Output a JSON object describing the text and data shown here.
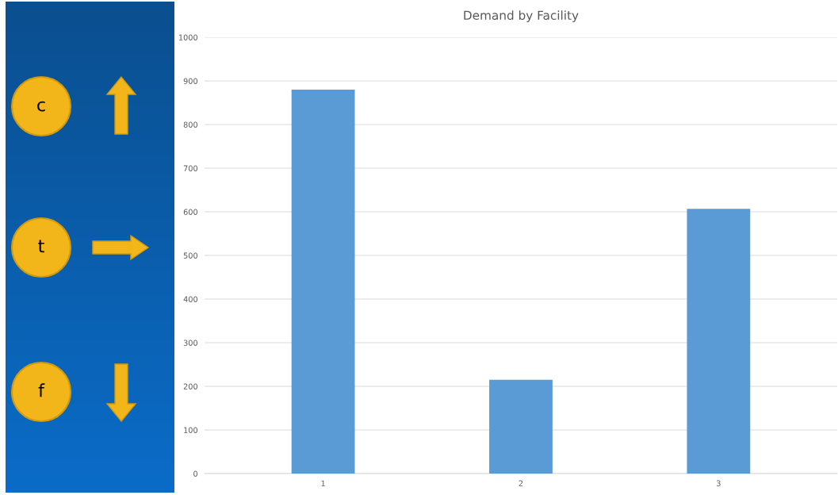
{
  "chart_data": [
    {
      "type": "bar",
      "title": "Demand by Facility",
      "categories": [
        "1",
        "2",
        "3"
      ],
      "values": [
        880,
        215,
        607
      ],
      "color": "#5b9bd5",
      "ylim": [
        0,
        1000
      ],
      "yticks": [
        0,
        100,
        200,
        300,
        400,
        500,
        600,
        700,
        800,
        900,
        1000
      ],
      "grid": "y"
    },
    {
      "type": "other",
      "annotations": [
        "c",
        "t",
        "f"
      ]
    }
  ]
}
